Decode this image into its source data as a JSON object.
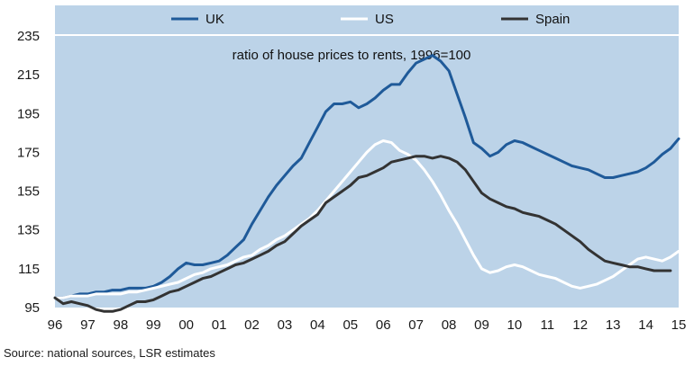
{
  "chart_data": {
    "type": "line",
    "title": "ratio of house prices to rents, 1996=100",
    "source": "Source: national sources, LSR estimates",
    "x_ticks": [
      "96",
      "97",
      "98",
      "99",
      "00",
      "01",
      "02",
      "03",
      "04",
      "05",
      "06",
      "07",
      "08",
      "09",
      "10",
      "11",
      "12",
      "13",
      "14",
      "15"
    ],
    "y_ticks": [
      "95",
      "115",
      "135",
      "155",
      "175",
      "195",
      "215",
      "235"
    ],
    "xlim": [
      1996,
      2015
    ],
    "ylim": [
      95,
      235
    ],
    "legend_position": "top",
    "colors": {
      "plot_bg": "#bcd3e8",
      "UK": "#1f5a99",
      "US": "#ffffff",
      "Spain": "#333333"
    },
    "series": [
      {
        "name": "UK",
        "x": [
          1996,
          1996.25,
          1996.5,
          1996.75,
          1997,
          1997.25,
          1997.5,
          1997.75,
          1998,
          1998.25,
          1998.5,
          1998.75,
          1999,
          1999.25,
          1999.5,
          1999.75,
          2000,
          2000.25,
          2000.5,
          2000.75,
          2001,
          2001.25,
          2001.5,
          2001.75,
          2002,
          2002.25,
          2002.5,
          2002.75,
          2003,
          2003.25,
          2003.5,
          2003.75,
          2004,
          2004.25,
          2004.5,
          2004.75,
          2005,
          2005.25,
          2005.5,
          2005.75,
          2006,
          2006.25,
          2006.5,
          2006.75,
          2007,
          2007.25,
          2007.5,
          2007.75,
          2008,
          2008.25,
          2008.5,
          2008.75,
          2009,
          2009.25,
          2009.5,
          2009.75,
          2010,
          2010.25,
          2010.5,
          2010.75,
          2011,
          2011.25,
          2011.5,
          2011.75,
          2012,
          2012.25,
          2012.5,
          2012.75,
          2013,
          2013.25,
          2013.5,
          2013.75,
          2014,
          2014.25,
          2014.5,
          2014.75,
          2015
        ],
        "values": [
          100,
          100,
          101,
          102,
          102,
          103,
          103,
          104,
          104,
          105,
          105,
          105,
          106,
          108,
          111,
          115,
          118,
          117,
          117,
          118,
          119,
          122,
          126,
          130,
          138,
          145,
          152,
          158,
          163,
          168,
          172,
          180,
          188,
          196,
          200,
          200,
          201,
          198,
          200,
          203,
          207,
          210,
          210,
          216,
          221,
          223,
          225,
          222,
          217,
          205,
          193,
          180,
          177,
          173,
          175,
          179,
          181,
          180,
          178,
          176,
          174,
          172,
          170,
          168,
          167,
          166,
          164,
          162,
          162,
          163,
          164,
          165,
          167,
          170,
          174,
          177,
          182
        ]
      },
      {
        "name": "US",
        "x": [
          1996,
          1996.25,
          1996.5,
          1996.75,
          1997,
          1997.25,
          1997.5,
          1997.75,
          1998,
          1998.25,
          1998.5,
          1998.75,
          1999,
          1999.25,
          1999.5,
          1999.75,
          2000,
          2000.25,
          2000.5,
          2000.75,
          2001,
          2001.25,
          2001.5,
          2001.75,
          2002,
          2002.25,
          2002.5,
          2002.75,
          2003,
          2003.25,
          2003.5,
          2003.75,
          2004,
          2004.25,
          2004.5,
          2004.75,
          2005,
          2005.25,
          2005.5,
          2005.75,
          2006,
          2006.25,
          2006.5,
          2006.75,
          2007,
          2007.25,
          2007.5,
          2007.75,
          2008,
          2008.25,
          2008.5,
          2008.75,
          2009,
          2009.25,
          2009.5,
          2009.75,
          2010,
          2010.25,
          2010.5,
          2010.75,
          2011,
          2011.25,
          2011.5,
          2011.75,
          2012,
          2012.25,
          2012.5,
          2012.75,
          2013,
          2013.25,
          2013.5,
          2013.75,
          2014,
          2014.25,
          2014.5,
          2014.75,
          2015
        ],
        "values": [
          100,
          100,
          101,
          101,
          101,
          102,
          102,
          102,
          102,
          103,
          103,
          104,
          105,
          106,
          107,
          108,
          110,
          112,
          113,
          115,
          116,
          117,
          119,
          121,
          122,
          125,
          127,
          130,
          132,
          135,
          138,
          141,
          145,
          150,
          155,
          160,
          165,
          170,
          175,
          179,
          181,
          180,
          176,
          174,
          171,
          166,
          160,
          153,
          145,
          138,
          130,
          122,
          115,
          113,
          114,
          116,
          117,
          116,
          114,
          112,
          111,
          110,
          108,
          106,
          105,
          106,
          107,
          109,
          111,
          114,
          117,
          120,
          121,
          120,
          119,
          121,
          124
        ]
      },
      {
        "name": "Spain",
        "x": [
          1996,
          1996.25,
          1996.5,
          1996.75,
          1997,
          1997.25,
          1997.5,
          1997.75,
          1998,
          1998.25,
          1998.5,
          1998.75,
          1999,
          1999.25,
          1999.5,
          1999.75,
          2000,
          2000.25,
          2000.5,
          2000.75,
          2001,
          2001.25,
          2001.5,
          2001.75,
          2002,
          2002.25,
          2002.5,
          2002.75,
          2003,
          2003.25,
          2003.5,
          2003.75,
          2004,
          2004.25,
          2004.5,
          2004.75,
          2005,
          2005.25,
          2005.5,
          2005.75,
          2006,
          2006.25,
          2006.5,
          2006.75,
          2007,
          2007.25,
          2007.5,
          2007.75,
          2008,
          2008.25,
          2008.5,
          2008.75,
          2009,
          2009.25,
          2009.5,
          2009.75,
          2010,
          2010.25,
          2010.5,
          2010.75,
          2011,
          2011.25,
          2011.5,
          2011.75,
          2012,
          2012.25,
          2012.5,
          2012.75,
          2013,
          2013.25,
          2013.5,
          2013.75,
          2014,
          2014.25,
          2014.5,
          2014.75
        ],
        "values": [
          100,
          97,
          98,
          97,
          96,
          94,
          93,
          93,
          94,
          96,
          98,
          98,
          99,
          101,
          103,
          104,
          106,
          108,
          110,
          111,
          113,
          115,
          117,
          118,
          120,
          122,
          124,
          127,
          129,
          133,
          137,
          140,
          143,
          149,
          152,
          155,
          158,
          162,
          163,
          165,
          167,
          170,
          171,
          172,
          173,
          173,
          172,
          173,
          172,
          170,
          166,
          160,
          154,
          151,
          149,
          147,
          146,
          144,
          143,
          142,
          140,
          138,
          135,
          132,
          129,
          125,
          122,
          119,
          118,
          117,
          116,
          116,
          115,
          114,
          114,
          114
        ]
      }
    ]
  }
}
